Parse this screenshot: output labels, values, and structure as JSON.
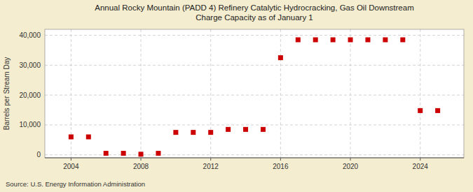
{
  "chart_data": {
    "type": "scatter",
    "title": "Annual Rocky Mountain (PADD 4) Refinery Catalytic Hydrocracking, Gas Oil Downstream\nCharge Capacity as of January 1",
    "ylabel": "Barrels per Stream Day",
    "source": "Source: U.S. Energy Information Administration",
    "color": "#cc0000",
    "marker": "square",
    "x": [
      2004,
      2005,
      2006,
      2007,
      2008,
      2009,
      2010,
      2011,
      2012,
      2013,
      2014,
      2015,
      2016,
      2017,
      2018,
      2019,
      2020,
      2021,
      2022,
      2023,
      2024,
      2025
    ],
    "values": [
      6000,
      6000,
      500,
      500,
      200,
      500,
      7500,
      7500,
      7500,
      8500,
      8500,
      8500,
      32500,
      38500,
      38500,
      38500,
      38500,
      38500,
      38500,
      38500,
      14800,
      14800
    ],
    "xlim": [
      2002.5,
      2026.5
    ],
    "ylim": [
      -1000,
      42000
    ],
    "xticks": [
      2004,
      2008,
      2012,
      2016,
      2020,
      2024
    ],
    "yticks": [
      0,
      {
        "value": 10000,
        "label": "10,000"
      },
      {
        "value": 20000,
        "label": "20,000"
      },
      {
        "value": 30000,
        "label": "30,000"
      },
      {
        "value": 40000,
        "label": "40,000"
      }
    ],
    "grid": true
  }
}
